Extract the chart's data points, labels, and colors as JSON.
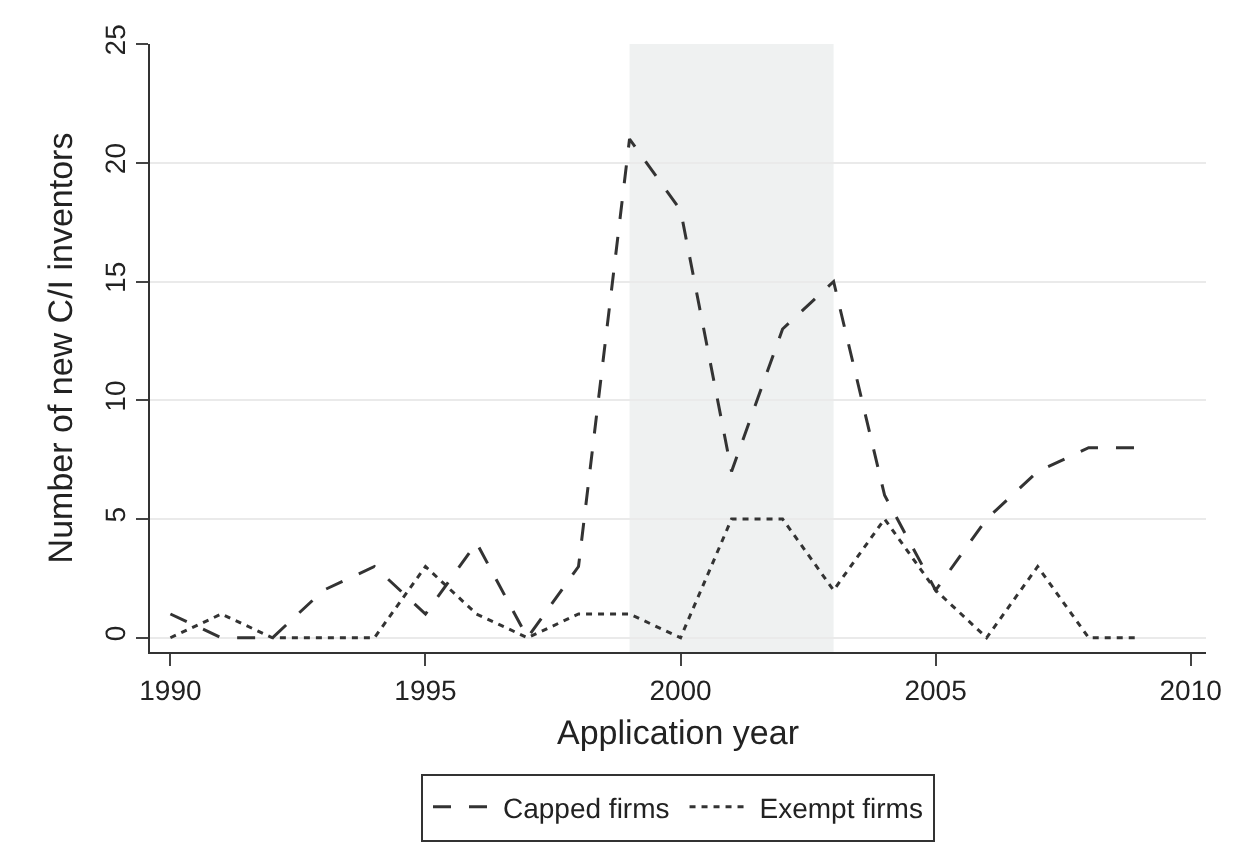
{
  "chart_data": {
    "type": "line",
    "xlabel": "Application year",
    "ylabel": "Number of new C/I inventors",
    "x": [
      1990,
      1991,
      1992,
      1993,
      1994,
      1995,
      1996,
      1997,
      1998,
      1999,
      2000,
      2001,
      2002,
      2003,
      2004,
      2005,
      2006,
      2007,
      2008,
      2009
    ],
    "series": [
      {
        "name": "Capped firms",
        "color": "#333333",
        "line_style": "dashed",
        "values": [
          1,
          0,
          0,
          2,
          3,
          1,
          4,
          0,
          3,
          21,
          18,
          7,
          13,
          15,
          6,
          2,
          5,
          7,
          8,
          8
        ]
      },
      {
        "name": "Exempt firms",
        "color": "#333333",
        "line_style": "dotted",
        "values": [
          0,
          1,
          0,
          0,
          0,
          3,
          1,
          0,
          1,
          1,
          0,
          5,
          5,
          2,
          5,
          2,
          0,
          3,
          0,
          0
        ]
      }
    ],
    "xlim": [
      1989.6,
      2010.3
    ],
    "xticks": [
      1990,
      1995,
      2000,
      2005,
      2010
    ],
    "ylim": [
      -0.6,
      25
    ],
    "yticks": [
      0,
      5,
      10,
      15,
      20,
      25
    ],
    "bands": [
      {
        "axis": "x",
        "from": 1999,
        "to": 2003,
        "color": "#eff1f1"
      }
    ],
    "grid": "y",
    "legend": "bottom",
    "marker": "none"
  }
}
